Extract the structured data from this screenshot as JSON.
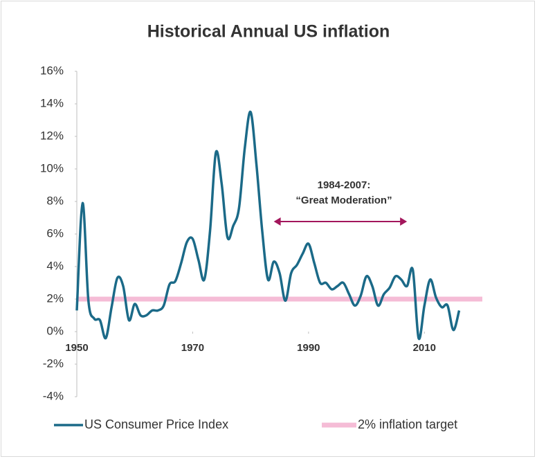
{
  "chart_data": {
    "type": "line",
    "title": "Historical Annual US inflation",
    "xlim": [
      1950,
      2020
    ],
    "xticks": [
      1950,
      1970,
      1990,
      2010
    ],
    "ylim": [
      -4,
      16
    ],
    "yticks": [
      {
        "value": -4,
        "label": "-4%"
      },
      {
        "value": -2,
        "label": "-2%"
      },
      {
        "value": 0,
        "label": "0%"
      },
      {
        "value": 2,
        "label": "2%"
      },
      {
        "value": 4,
        "label": "4%"
      },
      {
        "value": 6,
        "label": "6%"
      },
      {
        "value": 8,
        "label": "8%"
      },
      {
        "value": 10,
        "label": "10%"
      },
      {
        "value": 12,
        "label": "12%"
      },
      {
        "value": 14,
        "label": "14%"
      },
      {
        "value": 16,
        "label": "16%"
      }
    ],
    "legend": "bottom",
    "series": [
      {
        "name": "US Consumer Price Index",
        "color": "#1b6a88",
        "x": [
          1950,
          1951,
          1952,
          1953,
          1954,
          1955,
          1956,
          1957,
          1958,
          1959,
          1960,
          1961,
          1962,
          1963,
          1964,
          1965,
          1966,
          1967,
          1968,
          1969,
          1970,
          1971,
          1972,
          1973,
          1974,
          1975,
          1976,
          1977,
          1978,
          1979,
          1980,
          1981,
          1982,
          1983,
          1984,
          1985,
          1986,
          1987,
          1988,
          1989,
          1990,
          1991,
          1992,
          1993,
          1994,
          1995,
          1996,
          1997,
          1998,
          1999,
          2000,
          2001,
          2002,
          2003,
          2004,
          2005,
          2006,
          2007,
          2008,
          2009,
          2010,
          2011,
          2012,
          2013,
          2014,
          2015,
          2016
        ],
        "values": [
          1.3,
          7.9,
          1.9,
          0.8,
          0.7,
          -0.4,
          1.5,
          3.3,
          2.8,
          0.7,
          1.7,
          1.0,
          1.0,
          1.3,
          1.3,
          1.6,
          2.9,
          3.1,
          4.2,
          5.5,
          5.7,
          4.4,
          3.2,
          6.2,
          11.0,
          9.1,
          5.8,
          6.5,
          7.6,
          11.3,
          13.5,
          10.3,
          6.2,
          3.2,
          4.3,
          3.6,
          1.9,
          3.6,
          4.1,
          4.8,
          5.4,
          4.2,
          3.0,
          3.0,
          2.6,
          2.8,
          3.0,
          2.3,
          1.6,
          2.2,
          3.4,
          2.8,
          1.6,
          2.3,
          2.7,
          3.4,
          3.2,
          2.8,
          3.8,
          -0.4,
          1.6,
          3.2,
          2.1,
          1.5,
          1.6,
          0.1,
          1.3
        ]
      },
      {
        "name": "2% inflation target",
        "color": "#f5bcd6",
        "x": [
          1950,
          2020
        ],
        "values": [
          2,
          2
        ]
      }
    ],
    "annotation": {
      "lines": [
        "1984-2007:",
        "“Great Moderation”"
      ],
      "x": [
        1984,
        2007
      ],
      "color": "#a3165c"
    }
  }
}
